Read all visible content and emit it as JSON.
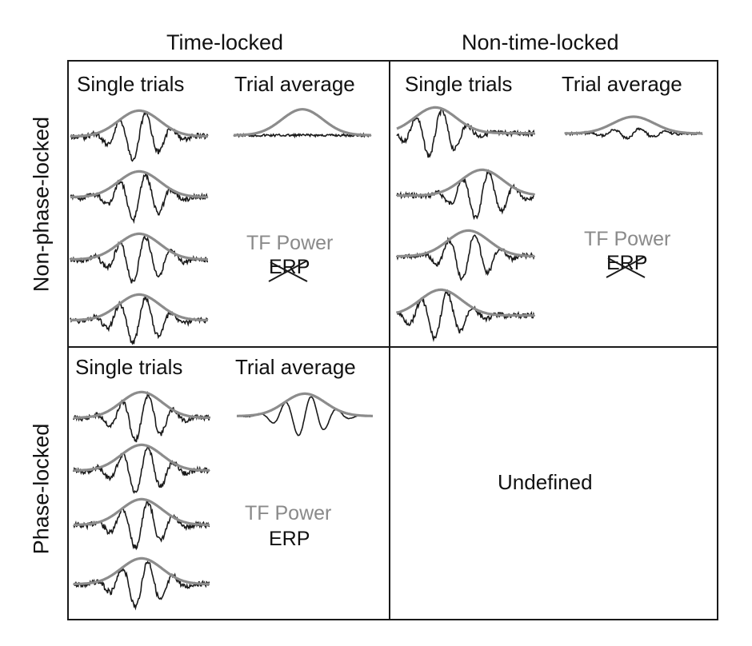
{
  "columns": [
    "Time-locked",
    "Non-time-locked"
  ],
  "rows": [
    "Non-phase-locked",
    "Phase-locked"
  ],
  "sub_headers": {
    "single": "Single trials",
    "average": "Trial average"
  },
  "labels": {
    "tf_power": "TF Power",
    "erp": "ERP",
    "undefined": "Undefined"
  },
  "colors": {
    "trace": "#1a1a1a",
    "envelope": "#8c8c8c",
    "tf_text": "#8a8a8a",
    "border": "#1a1a1a"
  },
  "cells": {
    "nonphase_timelocked": {
      "erp_crossed": true
    },
    "nonphase_nontimelocked": {
      "erp_crossed": true
    },
    "phase_timelocked": {
      "erp_crossed": false
    }
  }
}
